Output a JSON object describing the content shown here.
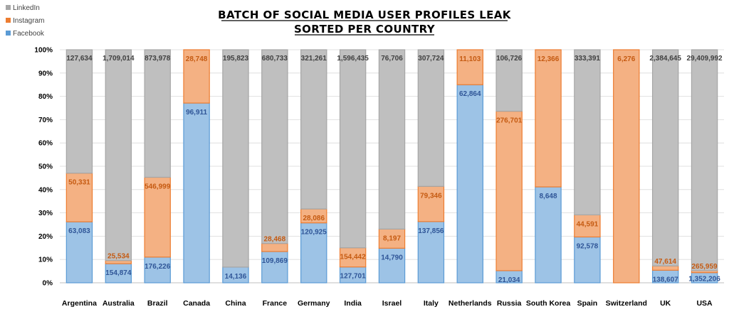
{
  "chart_data": {
    "type": "bar",
    "stacked": "percent",
    "title": [
      "BATCH OF SOCIAL MEDIA USER PROFILES LEAK",
      "SORTED PER COUNTRY"
    ],
    "categories": [
      "Argentina",
      "Australia",
      "Brazil",
      "Canada",
      "China",
      "France",
      "Germany",
      "India",
      "Israel",
      "Italy",
      "Netherlands",
      "Russia",
      "South Korea",
      "Spain",
      "Switzerland",
      "UK",
      "USA"
    ],
    "series": [
      {
        "name": "Facebook",
        "color": "#9dc3e6",
        "stroke": "#5b9bd5",
        "label_color": "#2f5597",
        "values": [
          63083,
          154874,
          176226,
          96911,
          14136,
          109869,
          120925,
          127701,
          14790,
          137856,
          62864,
          21034,
          8648,
          92578,
          null,
          138607,
          1352206
        ],
        "labels": [
          "63,083",
          "154,874",
          "176,226",
          "96,911",
          "14,136",
          "109,869",
          "120,925",
          "127,701",
          "14,790",
          "137,856",
          "62,864",
          "21,034",
          "8,648",
          "92,578",
          "",
          "138,607",
          "1,352,206"
        ]
      },
      {
        "name": "Instagram",
        "color": "#f4b183",
        "stroke": "#ed7d31",
        "label_color": "#c55a11",
        "values": [
          50331,
          25534,
          546999,
          28748,
          null,
          28468,
          28086,
          154442,
          8197,
          79346,
          11103,
          276701,
          12366,
          44591,
          6276,
          47614,
          265959
        ],
        "labels": [
          "50,331",
          "25,534",
          "546,999",
          "28,748",
          "",
          "28,468",
          "28,086",
          "154,442",
          "8,197",
          "79,346",
          "11,103",
          "276,701",
          "12,366",
          "44,591",
          "6,276",
          "47,614",
          "265,959"
        ]
      },
      {
        "name": "LinkedIn",
        "color": "#bfbfbf",
        "stroke": "#a6a6a6",
        "label_color": "#404040",
        "values": [
          127634,
          1709014,
          873978,
          null,
          195823,
          680733,
          321261,
          1596435,
          76706,
          307724,
          null,
          106726,
          null,
          333391,
          null,
          2384645,
          29409992
        ],
        "labels": [
          "127,634",
          "1,709,014",
          "873,978",
          "",
          "195,823",
          "680,733",
          "321,261",
          "1,596,435",
          "76,706",
          "307,724",
          "",
          "106,726",
          "",
          "333,391",
          "",
          "2,384,645",
          "29,409,992"
        ]
      }
    ],
    "legend": {
      "position": "top-left",
      "order": [
        "LinkedIn",
        "Instagram",
        "Facebook"
      ]
    },
    "ylim": [
      0,
      100
    ],
    "yticks": [
      "0%",
      "10%",
      "20%",
      "30%",
      "40%",
      "50%",
      "60%",
      "70%",
      "80%",
      "90%",
      "100%"
    ],
    "grid": true,
    "xlabel": "",
    "ylabel": ""
  }
}
